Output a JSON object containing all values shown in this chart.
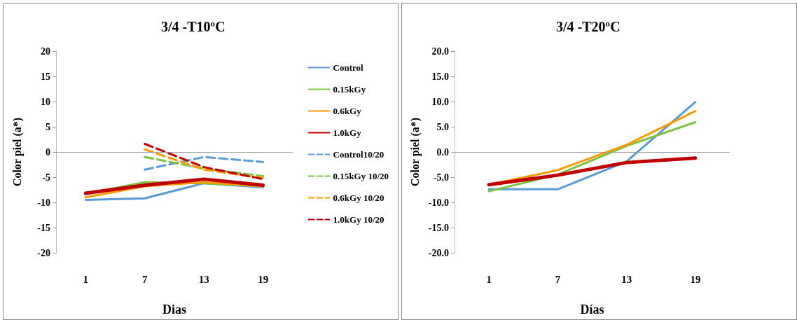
{
  "chart_data": [
    {
      "type": "line",
      "title": "3/4 -T10ºC",
      "xlabel": "Dias",
      "ylabel": "Color piel (a*)",
      "categories": [
        "1",
        "7",
        "13",
        "19"
      ],
      "ylim": [
        -20,
        20
      ],
      "yticks": [
        -20,
        -15,
        -10,
        -5,
        0,
        5,
        10,
        15,
        20
      ],
      "grid": false,
      "legend": "right",
      "marker": "none",
      "ref_lines": [
        {
          "axis": "y",
          "value": 0,
          "color": "#999999"
        }
      ],
      "series": [
        {
          "name": "Control",
          "color": "#5b9bd5",
          "values": [
            -9.5,
            -9.2,
            -6.2,
            -7.0
          ]
        },
        {
          "name": "0.15kGy",
          "color": "#7fc241",
          "values": [
            -8.3,
            -6.0,
            -6.2,
            -6.8
          ]
        },
        {
          "name": "0.6kGy",
          "color": "#ff9900",
          "values": [
            -9.0,
            -6.8,
            -6.0,
            -6.8
          ]
        },
        {
          "name": "1.0kGy",
          "color": "#c00000",
          "values": [
            -8.2,
            -6.6,
            -5.4,
            -6.6
          ]
        },
        {
          "name": "Control10/20",
          "color": "#5b9bd5",
          "line_style": "dashed",
          "values": [
            null,
            -3.5,
            -1.0,
            -2.0
          ]
        },
        {
          "name": "0.15kGy 10/20",
          "color": "#7fc241",
          "line_style": "dashed",
          "values": [
            null,
            -1.0,
            -3.3,
            -4.8
          ]
        },
        {
          "name": "0.6kGy 10/20",
          "color": "#ff9900",
          "line_style": "dashed",
          "values": [
            null,
            0.5,
            -3.5,
            -5.2
          ]
        },
        {
          "name": "1.0kGy 10/20",
          "color": "#c00000",
          "line_style": "dashed",
          "values": [
            null,
            1.6,
            -3.0,
            -5.4
          ]
        }
      ]
    },
    {
      "type": "line",
      "title": "3/4 -T20ºC",
      "xlabel": "Días",
      "ylabel": "Color piel (a*)",
      "categories": [
        "1",
        "7",
        "13",
        "19"
      ],
      "ylim": [
        -20,
        20
      ],
      "yticks": [
        {
          "value": -20,
          "label": "-20.0"
        },
        {
          "value": -15,
          "label": "-15.0"
        },
        {
          "value": -10,
          "label": "-10.0"
        },
        {
          "value": -5,
          "label": "-5.0"
        },
        {
          "value": 0,
          "label": "0.0"
        },
        {
          "value": 5,
          "label": "5.0"
        },
        {
          "value": 10,
          "label": "10.0"
        },
        {
          "value": 15,
          "label": "15.0"
        },
        {
          "value": 20,
          "label": "20.0"
        }
      ],
      "grid": false,
      "legend": false,
      "marker": "none",
      "ref_lines": [
        {
          "axis": "y",
          "value": 0,
          "color": "#999999"
        }
      ],
      "series": [
        {
          "color": "#5b9bd5",
          "values": [
            -7.4,
            -7.4,
            -1.9,
            9.9
          ]
        },
        {
          "color": "#7fc241",
          "values": [
            -7.8,
            -4.5,
            1.2,
            5.9
          ]
        },
        {
          "color": "#ff9900",
          "values": [
            -6.5,
            -3.6,
            1.4,
            8.1
          ]
        },
        {
          "color": "#c00000",
          "values": [
            -6.5,
            -4.6,
            -2.1,
            -1.2
          ]
        }
      ]
    }
  ]
}
